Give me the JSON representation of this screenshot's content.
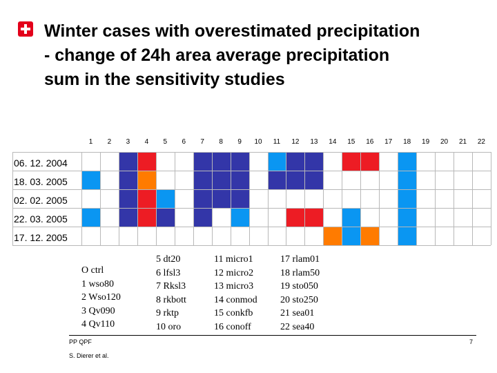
{
  "title": {
    "lines": [
      "Winter cases with overestimated precipitation",
      "- change of 24h area average precipitation",
      "sum in the sensitivity studies"
    ]
  },
  "colors": {
    "dark_blue": "#3336a8",
    "light_blue": "#0a96f2",
    "red": "#ed1c24",
    "orange": "#ff7b00",
    "white": "#ffffff"
  },
  "grid": {
    "columns": [
      "1",
      "2",
      "3",
      "4",
      "5",
      "6",
      "7",
      "8",
      "9",
      "10",
      "11",
      "12",
      "13",
      "14",
      "15",
      "16",
      "17",
      "18",
      "19",
      "20",
      "21",
      "22"
    ],
    "rows": [
      {
        "label": "06. 12. 2004",
        "cells": [
          "",
          "",
          "D",
          "R",
          "",
          "",
          "D",
          "D",
          "D",
          "",
          "L",
          "D",
          "D",
          "",
          "R",
          "R",
          "",
          "L",
          "",
          "",
          "",
          ""
        ]
      },
      {
        "label": "18. 03. 2005",
        "cells": [
          "L",
          "",
          "D",
          "O",
          "",
          "",
          "D",
          "D",
          "D",
          "",
          "D",
          "D",
          "D",
          "",
          "",
          "",
          "",
          "L",
          "",
          "",
          "",
          ""
        ]
      },
      {
        "label": "02. 02. 2005",
        "cells": [
          "",
          "",
          "D",
          "R",
          "L",
          "",
          "D",
          "D",
          "D",
          "",
          "",
          "",
          "",
          "",
          "",
          "",
          "",
          "L",
          "",
          "",
          "",
          ""
        ]
      },
      {
        "label": "22. 03. 2005",
        "cells": [
          "L",
          "",
          "D",
          "R",
          "D",
          "",
          "D",
          "",
          "L",
          "",
          "",
          "R",
          "R",
          "",
          "L",
          "",
          "",
          "L",
          "",
          "",
          "",
          ""
        ]
      },
      {
        "label": "17. 12. 2005",
        "cells": [
          "",
          "",
          "",
          "",
          "",
          "",
          "",
          "",
          "",
          "",
          "",
          "",
          "",
          "O",
          "L",
          "O",
          "",
          "L",
          "",
          "",
          "",
          ""
        ]
      }
    ]
  },
  "legend": {
    "col1": [
      "O ctrl",
      "1 wso80",
      "2 Wso120",
      "3 Qv090",
      "4 Qv110"
    ],
    "col2": [
      "5 dt20",
      "6 lfsl3",
      "7 Rksl3",
      "8 rkbott",
      "9 rktp",
      "10 oro"
    ],
    "col3": [
      "11 micro1",
      "12 micro2",
      "13 micro3",
      "14 conmod",
      "15 conkfb",
      "16 conoff"
    ],
    "col4": [
      "17 rlam01",
      "18 rlam50",
      "19 sto050",
      "20 sto250",
      "21 sea01",
      "22 sea40"
    ]
  },
  "footer": {
    "org": "PP QPF",
    "author": "S. Dierer et al.",
    "page": "7"
  }
}
